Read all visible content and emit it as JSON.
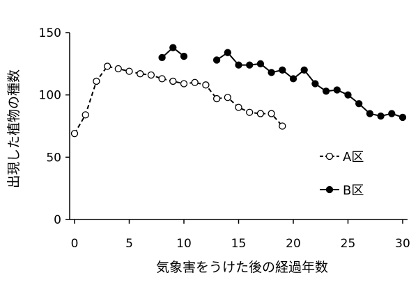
{
  "chart_data": {
    "type": "line",
    "xlabel": "気象害をうけた後の経過年数",
    "ylabel": "出現した植物の種数",
    "xlim": [
      0,
      30
    ],
    "ylim": [
      0,
      150
    ],
    "x_ticks": [
      "0",
      "5",
      "10",
      "15",
      "20",
      "25",
      "30"
    ],
    "y_ticks": [
      "0",
      "50",
      "100",
      "150"
    ],
    "grid": false,
    "legend_position": "right",
    "series": [
      {
        "name": "A区",
        "style": "dashed-open-circle",
        "segments": [
          [
            [
              0,
              69
            ],
            [
              1,
              84
            ],
            [
              2,
              111
            ],
            [
              3,
              123
            ],
            [
              4,
              121
            ],
            [
              5,
              119
            ],
            [
              6,
              117
            ],
            [
              7,
              116
            ],
            [
              8,
              113
            ],
            [
              9,
              111
            ],
            [
              10,
              109
            ],
            [
              11,
              110
            ],
            [
              12,
              108
            ],
            [
              13,
              97
            ],
            [
              14,
              98
            ],
            [
              15,
              90
            ],
            [
              16,
              86
            ],
            [
              17,
              85
            ],
            [
              18,
              85
            ],
            [
              19,
              75
            ]
          ]
        ]
      },
      {
        "name": "B区",
        "style": "solid-filled-circle",
        "segments": [
          [
            [
              8,
              130
            ],
            [
              9,
              138
            ],
            [
              10,
              131
            ]
          ],
          [
            [
              13,
              128
            ],
            [
              14,
              134
            ],
            [
              15,
              124
            ],
            [
              16,
              124
            ],
            [
              17,
              125
            ],
            [
              18,
              118
            ],
            [
              19,
              120
            ],
            [
              20,
              113
            ],
            [
              21,
              120
            ],
            [
              22,
              109
            ],
            [
              23,
              103
            ],
            [
              24,
              104
            ],
            [
              25,
              100
            ],
            [
              26,
              93
            ],
            [
              27,
              85
            ],
            [
              28,
              83
            ],
            [
              29,
              85
            ],
            [
              30,
              82
            ]
          ]
        ]
      }
    ]
  }
}
